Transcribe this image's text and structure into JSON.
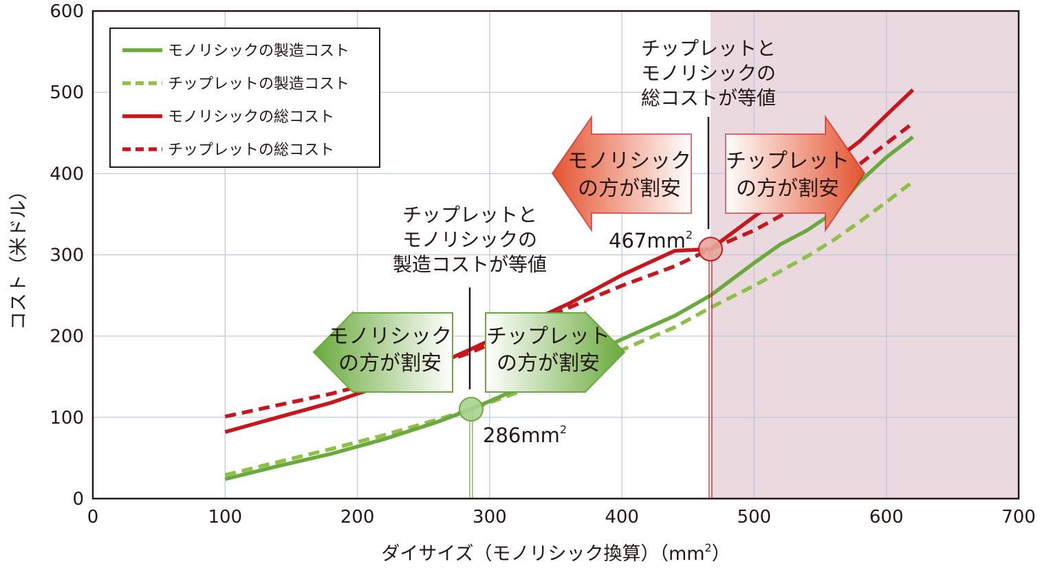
{
  "chart_data": {
    "type": "line",
    "xlabel_main": "ダイサイズ（モノリシック換算）（mm",
    "xlabel_sup": "2",
    "xlabel_end": "）",
    "ylabel": "コスト（米ドル）",
    "xlim": [
      0,
      700
    ],
    "ylim": [
      0,
      600
    ],
    "x_ticks": [
      "0",
      "100",
      "200",
      "300",
      "400",
      "500",
      "600",
      "700"
    ],
    "y_ticks": [
      "0",
      "100",
      "200",
      "300",
      "400",
      "500",
      "600"
    ],
    "grid": true,
    "legend_position": "top-left",
    "shaded_region": {
      "x_from": 467,
      "x_to": 700,
      "color": "#ead9df"
    },
    "series": [
      {
        "name": "モノリシックの製造コスト",
        "color": "#6aaa3c",
        "dash": "solid",
        "x": [
          100,
          140,
          180,
          220,
          260,
          286,
          320,
          360,
          400,
          440,
          467,
          500,
          520,
          540,
          560,
          580,
          600,
          620
        ],
        "y": [
          24,
          40,
          55,
          73,
          94,
          110,
          134,
          165,
          196,
          225,
          250,
          290,
          313,
          330,
          352,
          390,
          420,
          445
        ]
      },
      {
        "name": "チップレットの製造コスト",
        "color": "#8dc047",
        "dash": "dashed",
        "x": [
          100,
          140,
          180,
          220,
          260,
          286,
          320,
          360,
          400,
          440,
          467,
          500,
          520,
          540,
          560,
          580,
          600,
          620
        ],
        "y": [
          29,
          45,
          61,
          78,
          97,
          110,
          130,
          156,
          183,
          211,
          235,
          262,
          280,
          298,
          318,
          341,
          365,
          390
        ]
      },
      {
        "name": "モノリシックの総コスト",
        "color": "#c8161d",
        "dash": "solid",
        "x": [
          100,
          140,
          180,
          220,
          260,
          286,
          320,
          360,
          400,
          440,
          467,
          500,
          520,
          540,
          560,
          580,
          600,
          620
        ],
        "y": [
          82,
          100,
          118,
          140,
          165,
          184,
          210,
          240,
          275,
          305,
          307,
          347,
          370,
          390,
          415,
          440,
          472,
          503
        ]
      },
      {
        "name": "チップレットの総コスト",
        "color": "#c8161d",
        "dash": "dashed",
        "x": [
          100,
          140,
          180,
          220,
          260,
          286,
          320,
          360,
          400,
          440,
          467,
          500,
          520,
          540,
          560,
          580,
          600,
          620
        ],
        "y": [
          101,
          115,
          129,
          146,
          165,
          180,
          204,
          235,
          262,
          286,
          307,
          330,
          348,
          368,
          390,
          412,
          437,
          462
        ]
      }
    ],
    "markers": [
      {
        "x": 286,
        "y": 110,
        "label": "286mm",
        "sup": "2",
        "color": "#a9d18e",
        "stroke": "#6aaa3c"
      },
      {
        "x": 467,
        "y": 307,
        "label": "467mm",
        "sup": "2",
        "color": "#e8a59a",
        "stroke": "#c8161d"
      }
    ],
    "annotations": {
      "mfg_equal": [
        "チップレットと",
        "モノリシックの",
        "製造コストが等値"
      ],
      "total_equal": [
        "チップレットと",
        "モノリシックの",
        "総コストが等値"
      ]
    },
    "arrows": {
      "green_left": [
        "モノリシック",
        "の方が割安"
      ],
      "green_right": [
        "チップレット",
        "の方が割安"
      ],
      "red_left": [
        "モノリシック",
        "の方が割安"
      ],
      "red_right": [
        "チップレット",
        "の方が割安"
      ]
    },
    "colors": {
      "green_arrow": "#6aaa3c",
      "red_arrow": "#e4532f",
      "grid": "#b9c7d6"
    }
  }
}
